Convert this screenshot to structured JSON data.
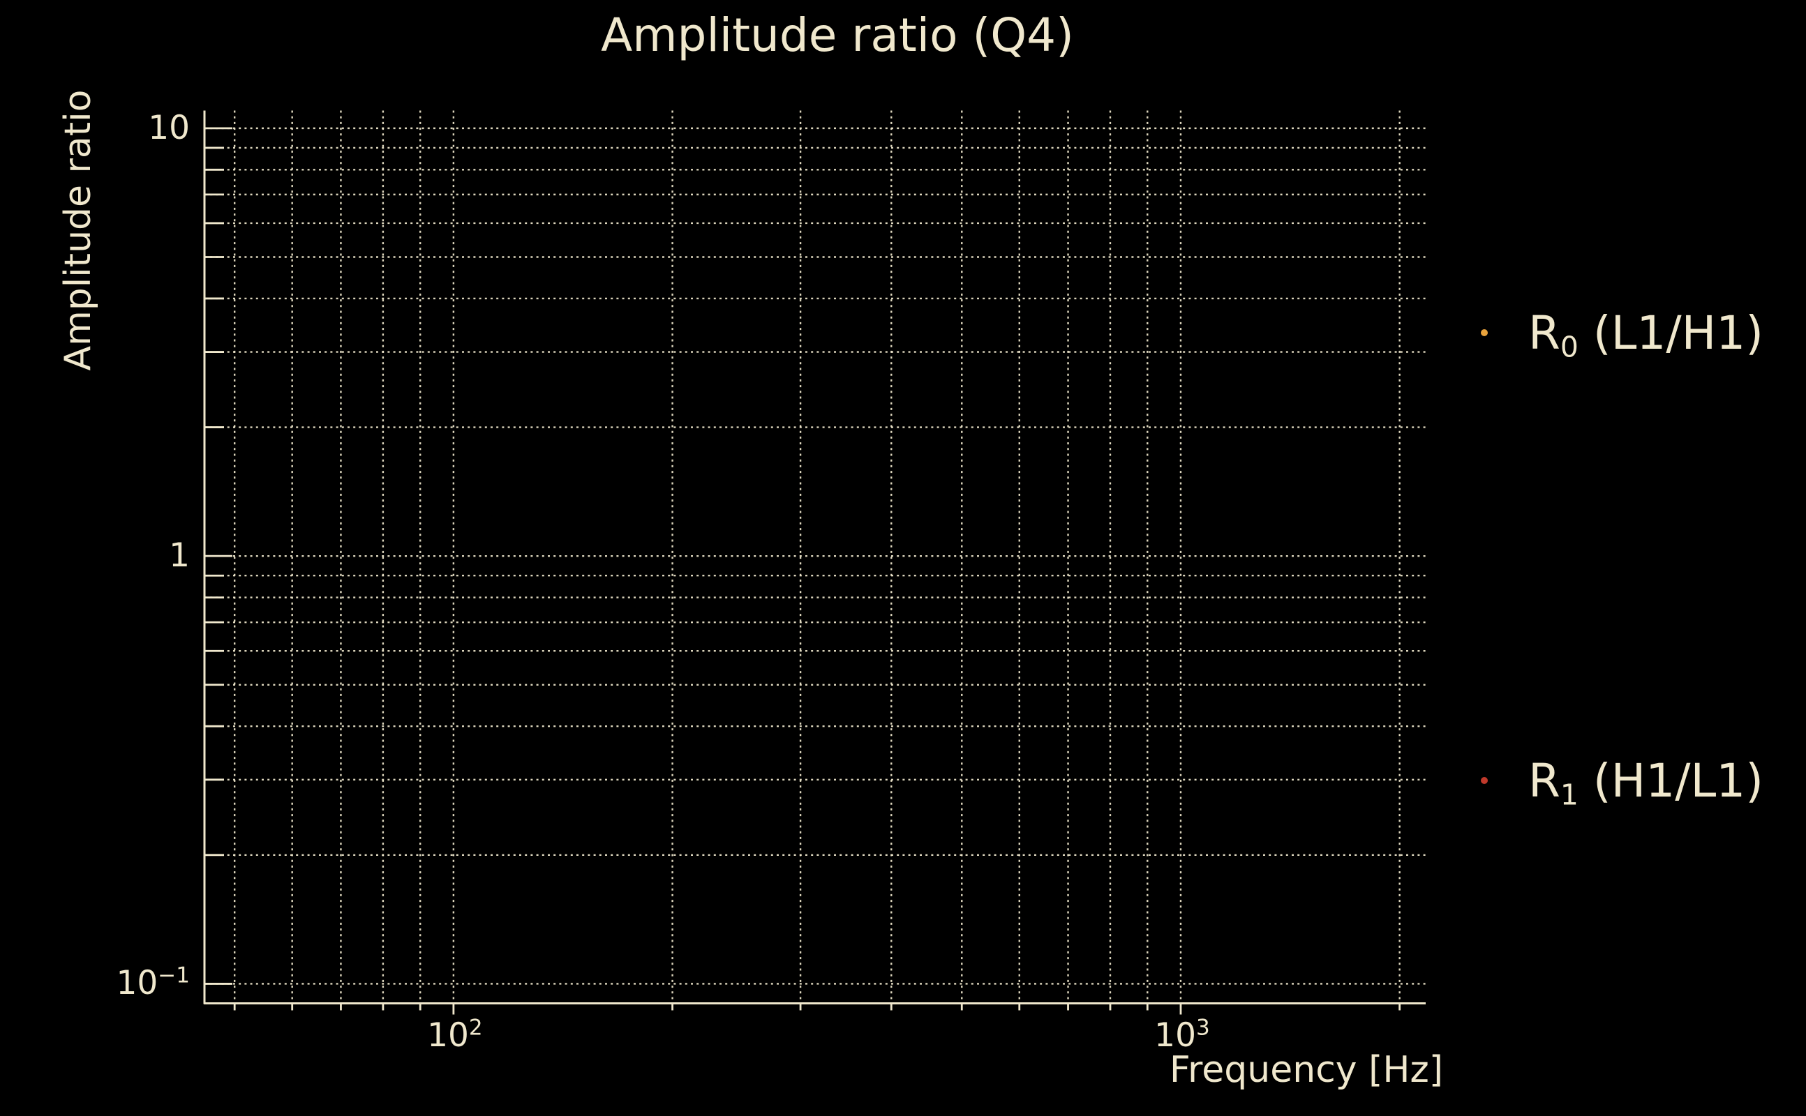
{
  "chart_data": {
    "type": "scatter",
    "title": "Amplitude ratio (Q4)",
    "xlabel": "Frequency [Hz]",
    "ylabel": "Amplitude ratio",
    "xscale": "log",
    "yscale": "log",
    "xlim": [
      45.45,
      2172
    ],
    "ylim": [
      0.09,
      11.0
    ],
    "grid": {
      "show": true,
      "which": "both",
      "linestyle": "dotted"
    },
    "background_color": "#000000",
    "foreground_color": "#f0e8cd",
    "x_tick_labels": [
      {
        "base": "10",
        "exp": "2",
        "value": 100
      },
      {
        "base": "10",
        "exp": "3",
        "value": 1000
      }
    ],
    "y_tick_labels": [
      {
        "base": "10",
        "exp": "",
        "value": 10
      },
      {
        "base": "1",
        "exp": "",
        "value": 1
      },
      {
        "base": "10",
        "exp": "−1",
        "value": 0.1
      }
    ],
    "series": [
      {
        "name": "R0 (L1/H1)",
        "label_base": "R",
        "label_sub": "0",
        "label_rest": " (L1/H1)",
        "color": "#e9a33c",
        "marker": "point",
        "points": []
      },
      {
        "name": "R1 (H1/L1)",
        "label_base": "R",
        "label_sub": "1",
        "label_rest": " (H1/L1)",
        "color": "#c0392b",
        "marker": "point",
        "points": []
      }
    ],
    "legend": {
      "position": "outside-right"
    }
  }
}
